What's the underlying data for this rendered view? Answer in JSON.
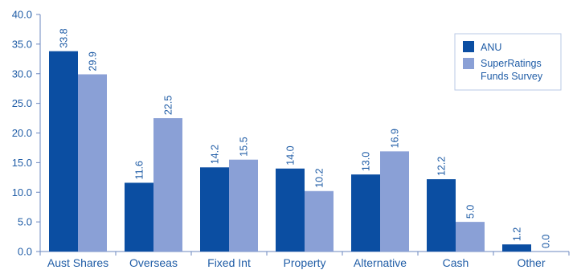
{
  "chart_data": {
    "type": "bar",
    "categories": [
      "Aust Shares",
      "Overseas",
      "Fixed Int",
      "Property",
      "Alternative",
      "Cash",
      "Other"
    ],
    "series": [
      {
        "name": "ANU",
        "values": [
          33.8,
          11.6,
          14.2,
          14.0,
          13.0,
          12.2,
          1.2
        ],
        "labels": [
          "33.8",
          "11.6",
          "14.2",
          "14.0",
          "13.0",
          "12.2",
          "1.2"
        ]
      },
      {
        "name": "SuperRatings Funds Survey",
        "values": [
          29.9,
          22.5,
          15.5,
          10.2,
          16.9,
          5.0,
          0.0
        ],
        "labels": [
          "29.9",
          "22.5",
          "15.5",
          "10.2",
          "16.9",
          "5.0",
          "0.0"
        ]
      }
    ],
    "yticks": [
      "0.0",
      "5.0",
      "10.0",
      "15.0",
      "20.0",
      "25.0",
      "30.0",
      "35.0",
      "40.0"
    ],
    "ylim": [
      0,
      40
    ],
    "title": "",
    "xlabel": "",
    "ylabel": "",
    "grid": false,
    "legend_position": "top-right"
  },
  "colors": {
    "series": [
      "#0b4ea2",
      "#8aa0d6"
    ],
    "text": "#1f5ca6",
    "axis": "#6b87bf",
    "legend_border": "#b9c8e4"
  }
}
